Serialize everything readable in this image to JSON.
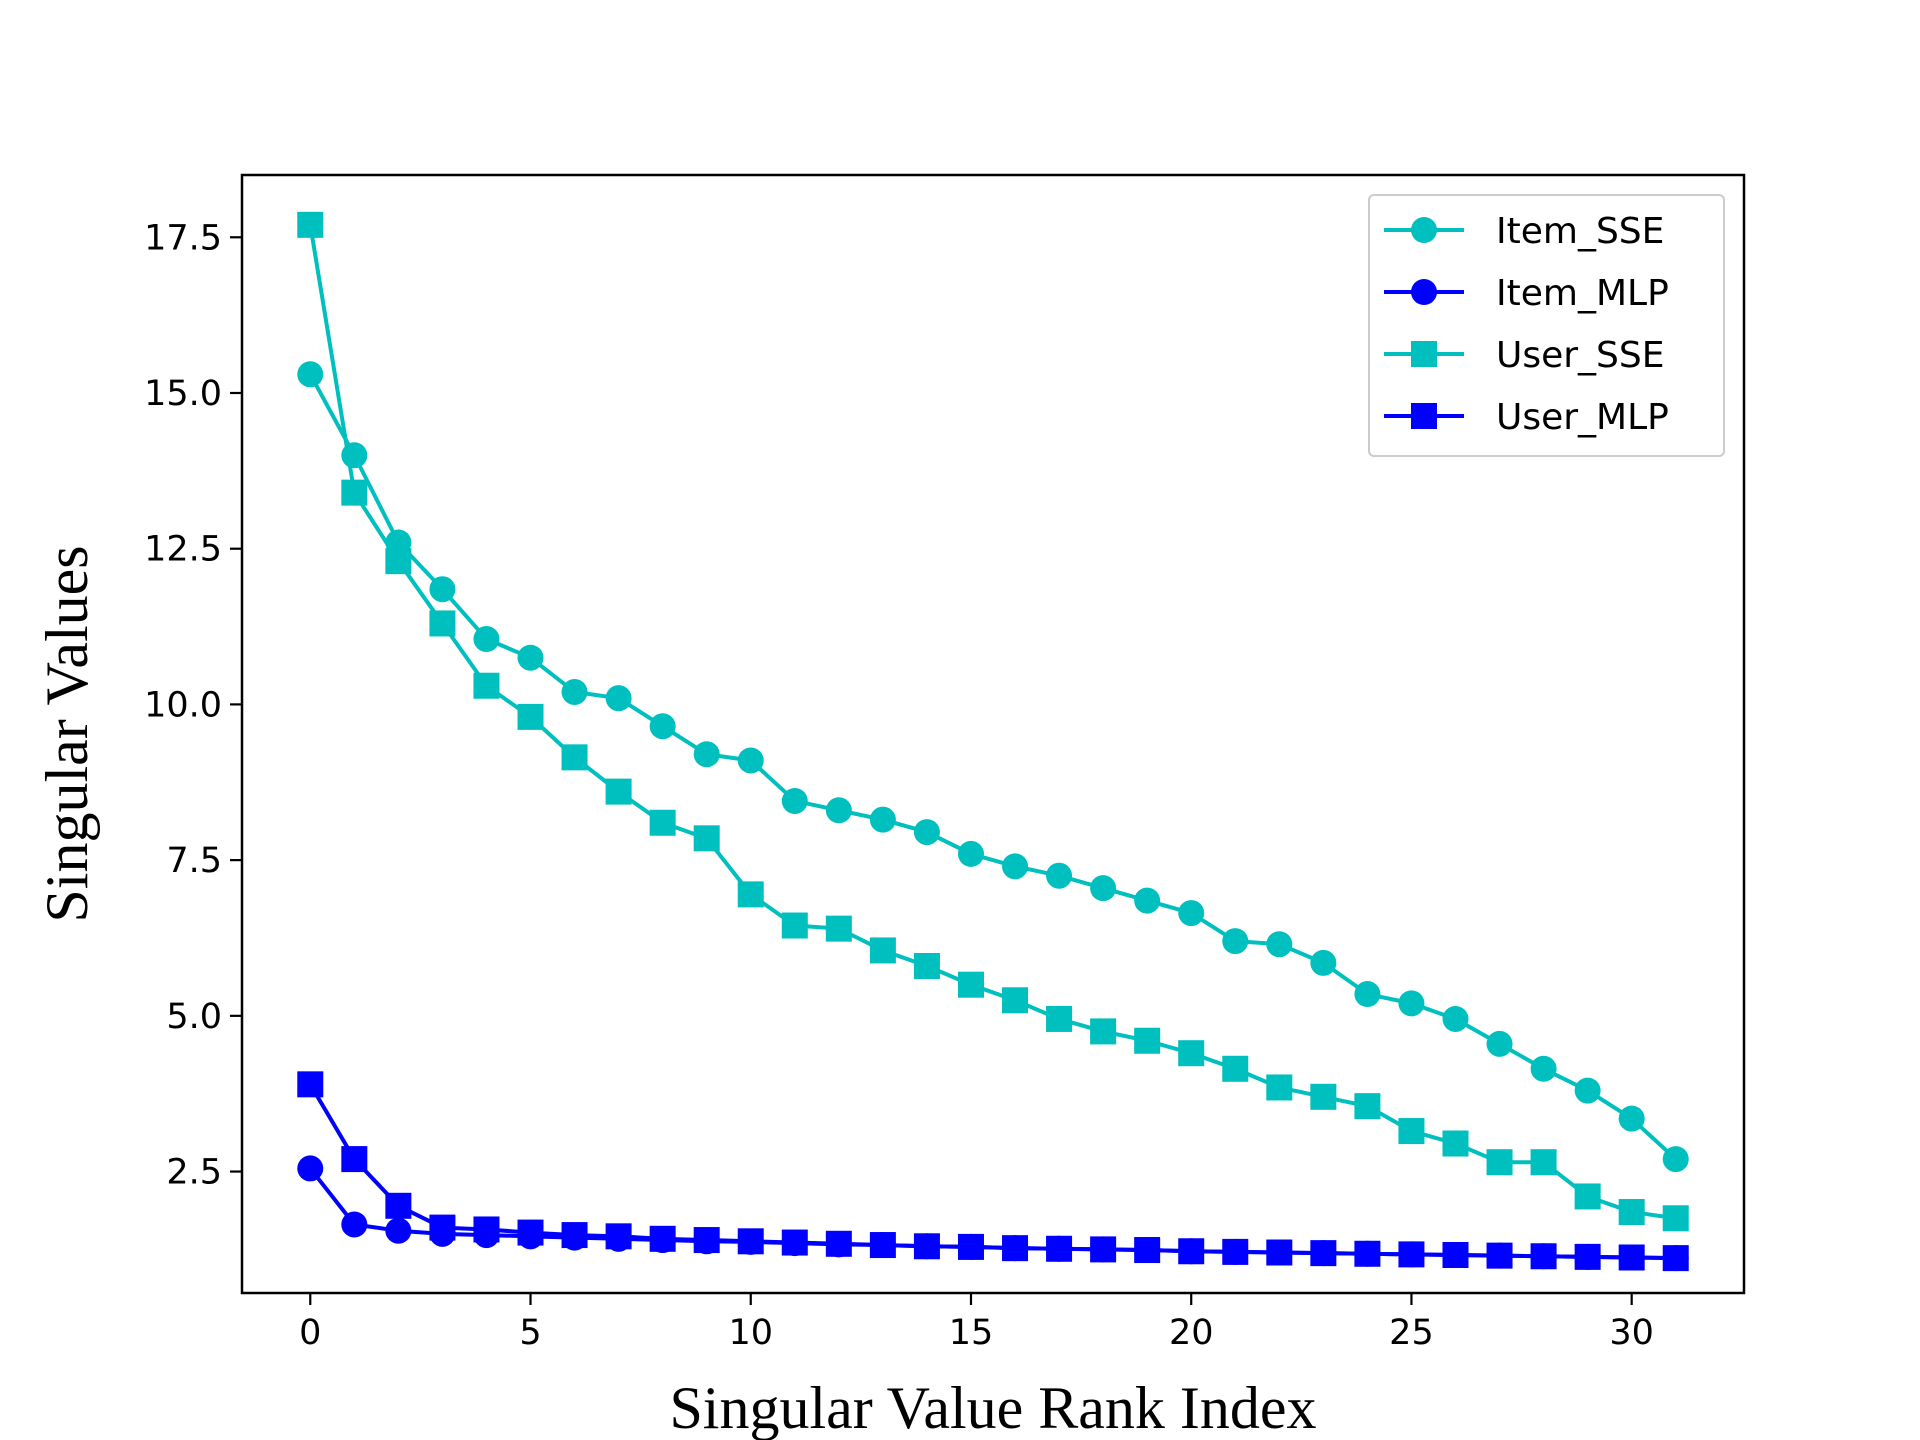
{
  "chart_data": {
    "type": "line",
    "title": "",
    "xlabel": "Singular Value Rank Index",
    "ylabel": "Singular Values",
    "xlim": [
      -1.55,
      32.55
    ],
    "ylim": [
      0.55,
      18.5
    ],
    "xticks": [
      0,
      5,
      10,
      15,
      20,
      25,
      30
    ],
    "xtick_labels": [
      "0",
      "5",
      "10",
      "15",
      "20",
      "25",
      "30"
    ],
    "yticks": [
      2.5,
      5.0,
      7.5,
      10.0,
      12.5,
      15.0,
      17.5
    ],
    "ytick_labels": [
      "2.5",
      "5.0",
      "7.5",
      "10.0",
      "12.5",
      "15.0",
      "17.5"
    ],
    "grid": false,
    "legend_position": "top-right",
    "x": [
      0,
      1,
      2,
      3,
      4,
      5,
      6,
      7,
      8,
      9,
      10,
      11,
      12,
      13,
      14,
      15,
      16,
      17,
      18,
      19,
      20,
      21,
      22,
      23,
      24,
      25,
      26,
      27,
      28,
      29,
      30,
      31
    ],
    "series": [
      {
        "name": "Item_SSE",
        "color": "#00BFBF",
        "marker": "circle",
        "values": [
          15.3,
          14.0,
          12.6,
          11.85,
          11.05,
          10.75,
          10.2,
          10.1,
          9.65,
          9.2,
          9.1,
          8.45,
          8.3,
          8.15,
          7.95,
          7.6,
          7.4,
          7.25,
          7.05,
          6.85,
          6.65,
          6.2,
          6.15,
          5.85,
          5.35,
          5.2,
          4.95,
          4.55,
          4.15,
          3.8,
          3.35,
          2.7
        ]
      },
      {
        "name": "Item_MLP",
        "color": "#0000FF",
        "marker": "circle",
        "values": [
          2.55,
          1.65,
          1.55,
          1.5,
          1.48,
          1.46,
          1.44,
          1.42,
          1.4,
          1.38,
          1.37,
          1.35,
          1.33,
          1.32,
          1.3,
          1.29,
          1.27,
          1.26,
          1.25,
          1.24,
          1.22,
          1.21,
          1.2,
          1.19,
          1.18,
          1.17,
          1.16,
          1.15,
          1.14,
          1.13,
          1.12,
          1.11
        ]
      },
      {
        "name": "User_SSE",
        "color": "#00BFBF",
        "marker": "square",
        "values": [
          17.7,
          13.4,
          12.3,
          11.3,
          10.3,
          9.8,
          9.15,
          8.6,
          8.1,
          7.85,
          6.95,
          6.45,
          6.4,
          6.05,
          5.8,
          5.5,
          5.25,
          4.95,
          4.75,
          4.6,
          4.4,
          4.15,
          3.85,
          3.7,
          3.55,
          3.15,
          2.95,
          2.65,
          2.65,
          2.1,
          1.85,
          1.75
        ]
      },
      {
        "name": "User_MLP",
        "color": "#0000FF",
        "marker": "square",
        "values": [
          3.9,
          2.7,
          1.95,
          1.6,
          1.57,
          1.52,
          1.48,
          1.46,
          1.42,
          1.4,
          1.38,
          1.36,
          1.34,
          1.32,
          1.3,
          1.29,
          1.27,
          1.26,
          1.25,
          1.24,
          1.22,
          1.21,
          1.2,
          1.19,
          1.18,
          1.17,
          1.16,
          1.15,
          1.14,
          1.13,
          1.12,
          1.11
        ]
      }
    ]
  }
}
